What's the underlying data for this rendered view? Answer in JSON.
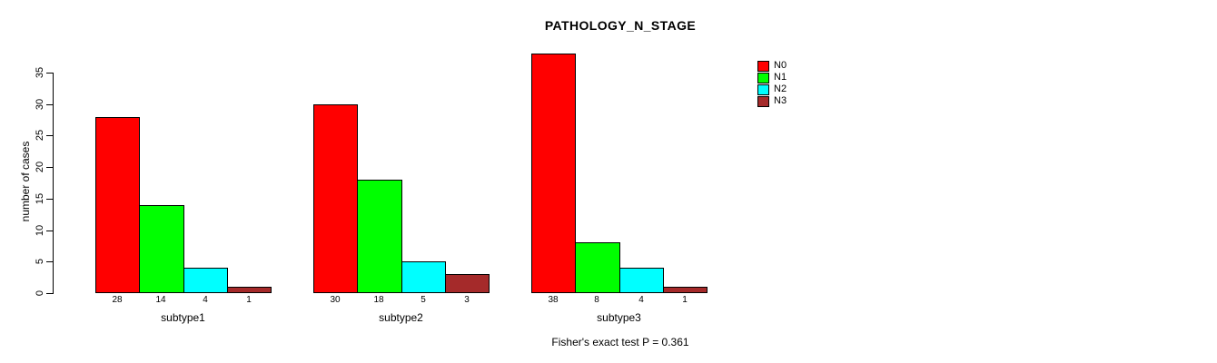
{
  "chart_data": {
    "type": "bar",
    "title": "PATHOLOGY_N_STAGE",
    "xlabel": "",
    "ylabel": "number of cases",
    "ylim": [
      0,
      35
    ],
    "yticks": [
      0,
      5,
      10,
      15,
      20,
      25,
      30,
      35
    ],
    "categories": [
      "subtype1",
      "subtype2",
      "subtype3"
    ],
    "series": [
      {
        "name": "N0",
        "color": "#FF0000",
        "values": [
          28,
          30,
          38
        ]
      },
      {
        "name": "N1",
        "color": "#00FF00",
        "values": [
          14,
          18,
          8
        ]
      },
      {
        "name": "N2",
        "color": "#00FFFF",
        "values": [
          4,
          5,
          4
        ]
      },
      {
        "name": "N3",
        "color": "#A52A2A",
        "values": [
          1,
          3,
          1
        ]
      }
    ],
    "bar_value_labels_shown": true,
    "legend_position": "top-right",
    "grid": false,
    "background": "#FFFFFF",
    "annotation": "Fisher's exact test P = 0.361"
  }
}
